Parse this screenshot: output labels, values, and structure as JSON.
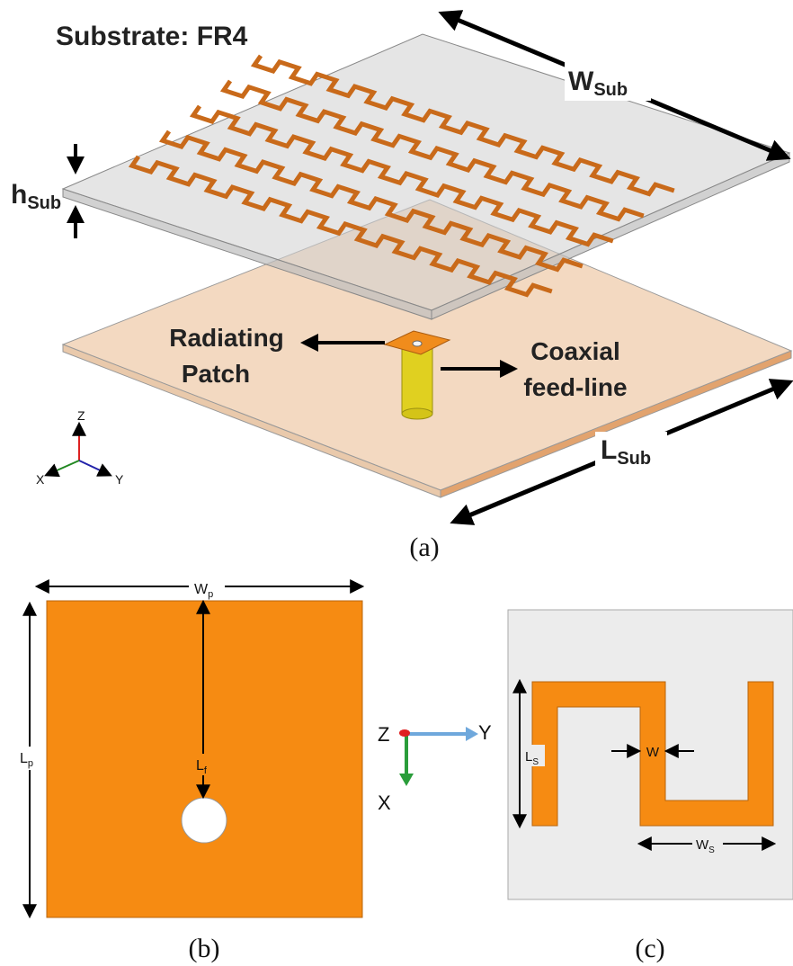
{
  "panel_a": {
    "substrate": "Substrate: FR4",
    "w_sub": {
      "main": "W",
      "sub": "Sub"
    },
    "h_sub": {
      "main": "h",
      "sub": "Sub"
    },
    "l_sub": {
      "main": "L",
      "sub": "Sub"
    },
    "patch_label": [
      "Radiating",
      "Patch"
    ],
    "feed_label": [
      "Coaxial",
      "feed-line"
    ],
    "axes": {
      "z": "Z",
      "x": "X",
      "y": "Y"
    },
    "caption": "(a)"
  },
  "panel_b": {
    "w_p": {
      "main": "W",
      "sub": "p"
    },
    "l_f": {
      "main": "L",
      "sub": "f"
    },
    "l_p": {
      "main": "L",
      "sub": "p"
    },
    "caption": "(b)"
  },
  "axes": {
    "z": "Z",
    "y": "Y",
    "x": "X"
  },
  "panel_c": {
    "l_s": {
      "main": "L",
      "sub": "S"
    },
    "w": "W",
    "w_s": {
      "main": "W",
      "sub": "S"
    },
    "caption": "(c)"
  }
}
